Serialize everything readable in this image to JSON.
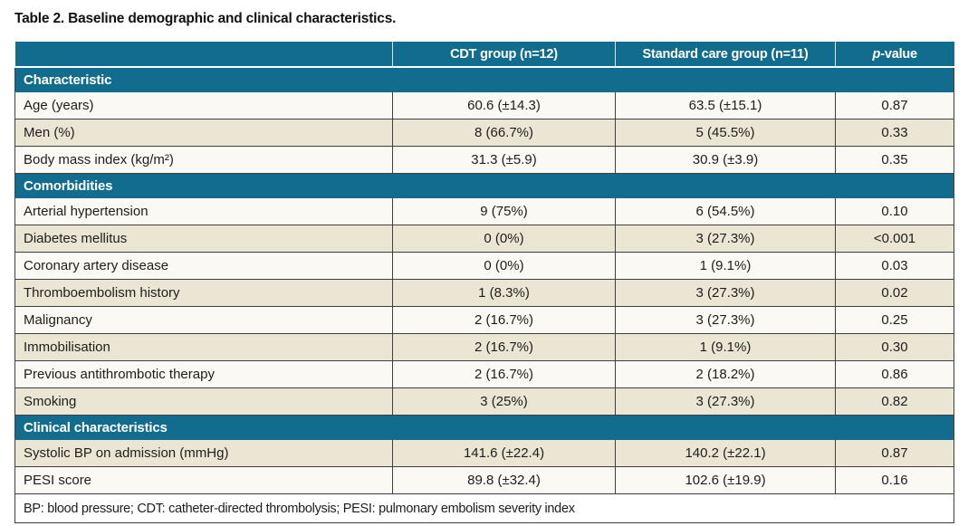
{
  "title": "Table 2. Baseline demographic and clinical characteristics.",
  "colors": {
    "teal_header": "#126c8e",
    "row_shaded": "#ebe6d3",
    "row_plain": "#faf9f3",
    "border": "#3f3f3f"
  },
  "header": {
    "col_cdt": "CDT group (n=12)",
    "col_standard": "Standard care group (n=11)",
    "p_italic": "p",
    "p_rest": "-value"
  },
  "sections": [
    {
      "title": "Characteristic",
      "rows": [
        {
          "label": "Age (years)",
          "cdt": "60.6 (±14.3)",
          "std": "63.5 (±15.1)",
          "p": "0.87"
        },
        {
          "label": "Men (%)",
          "cdt": "8 (66.7%)",
          "std": "5 (45.5%)",
          "p": "0.33"
        },
        {
          "label": "Body mass index (kg/m²)",
          "cdt": "31.3 (±5.9)",
          "std": "30.9 (±3.9)",
          "p": "0.35"
        }
      ]
    },
    {
      "title": "Comorbidities",
      "rows": [
        {
          "label": "Arterial hypertension",
          "cdt": "9 (75%)",
          "std": "6 (54.5%)",
          "p": "0.10"
        },
        {
          "label": "Diabetes mellitus",
          "cdt": "0 (0%)",
          "std": "3 (27.3%)",
          "p": "<0.001"
        },
        {
          "label": "Coronary artery disease",
          "cdt": "0 (0%)",
          "std": "1 (9.1%)",
          "p": "0.03"
        },
        {
          "label": "Thromboembolism history",
          "cdt": "1 (8.3%)",
          "std": "3 (27.3%)",
          "p": "0.02"
        },
        {
          "label": "Malignancy",
          "cdt": "2 (16.7%)",
          "std": "3 (27.3%)",
          "p": "0.25"
        },
        {
          "label": "Immobilisation",
          "cdt": "2 (16.7%)",
          "std": "1 (9.1%)",
          "p": "0.30"
        },
        {
          "label": "Previous antithrombotic therapy",
          "cdt": "2 (16.7%)",
          "std": "2 (18.2%)",
          "p": "0.86"
        },
        {
          "label": "Smoking",
          "cdt": "3 (25%)",
          "std": "3 (27.3%)",
          "p": "0.82"
        }
      ]
    },
    {
      "title": "Clinical characteristics",
      "rows": [
        {
          "label": "Systolic BP on admission (mmHg)",
          "cdt": "141.6 (±22.4)",
          "std": "140.2 (±22.1)",
          "p": "0.87"
        },
        {
          "label": "PESI score",
          "cdt": "89.8 (±32.4)",
          "std": "102.6 (±19.9)",
          "p": "0.16"
        }
      ]
    }
  ],
  "footnote": "BP: blood pressure; CDT: catheter-directed thrombolysis; PESI: pulmonary embolism severity index"
}
